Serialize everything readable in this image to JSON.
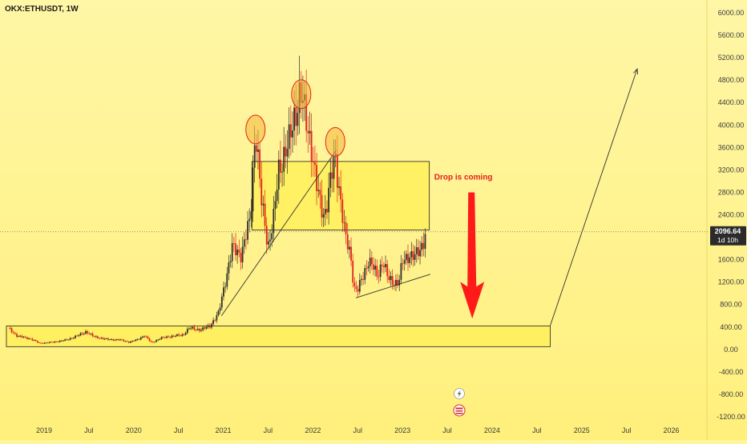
{
  "symbol_label": "OKX:ETHUSDT, 1W",
  "price_badge": {
    "price": "2096.64",
    "countdown": "1d 10h"
  },
  "annotation": "Drop is coming",
  "bottom_icons": [
    "lightning-icon",
    "replay-icon"
  ],
  "colors": {
    "up": "#2e2e2e",
    "down": "#e5201b",
    "zone_fill": "#fff05a",
    "arrow_red": "#ff1a1a",
    "background": "#fff28a"
  },
  "chart_data": {
    "type": "candlestick",
    "symbol": "OKX:ETHUSDT",
    "interval": "1W",
    "current_price": 2096.64,
    "ylim": [
      -1200,
      6000
    ],
    "y_ticks": [
      "6000.00",
      "5600.00",
      "5200.00",
      "4800.00",
      "4400.00",
      "4000.00",
      "3600.00",
      "3200.00",
      "2800.00",
      "2400.00",
      "2000.00",
      "1600.00",
      "1200.00",
      "800.00",
      "400.00",
      "0.00",
      "-400.00",
      "-800.00",
      "-1200.00"
    ],
    "x_ticks": [
      "2019",
      "Jul",
      "2020",
      "Jul",
      "2021",
      "Jul",
      "2022",
      "Jul",
      "2023",
      "Jul",
      "2024",
      "Jul",
      "2025",
      "Jul",
      "2026"
    ],
    "x_tick_values": [
      2019.0,
      2019.5,
      2020.0,
      2020.5,
      2021.0,
      2021.5,
      2022.0,
      2022.5,
      2023.0,
      2023.5,
      2024.0,
      2024.5,
      2025.0,
      2025.5,
      2026.0
    ],
    "xlim": [
      2018.58,
      2026.38
    ],
    "price_path": [
      [
        2018.6,
        380
      ],
      [
        2018.7,
        240
      ],
      [
        2018.85,
        190
      ],
      [
        2018.95,
        110
      ],
      [
        2019.1,
        130
      ],
      [
        2019.25,
        170
      ],
      [
        2019.4,
        260
      ],
      [
        2019.47,
        320
      ],
      [
        2019.55,
        230
      ],
      [
        2019.7,
        180
      ],
      [
        2019.85,
        170
      ],
      [
        2019.95,
        130
      ],
      [
        2020.05,
        180
      ],
      [
        2020.12,
        250
      ],
      [
        2020.2,
        120
      ],
      [
        2020.3,
        200
      ],
      [
        2020.4,
        230
      ],
      [
        2020.55,
        260
      ],
      [
        2020.62,
        380
      ],
      [
        2020.75,
        350
      ],
      [
        2020.85,
        420
      ],
      [
        2020.95,
        650
      ],
      [
        2021.02,
        1200
      ],
      [
        2021.1,
        1800
      ],
      [
        2021.2,
        1700
      ],
      [
        2021.3,
        2300
      ],
      [
        2021.36,
        4000
      ],
      [
        2021.42,
        2700
      ],
      [
        2021.5,
        1850
      ],
      [
        2021.56,
        2300
      ],
      [
        2021.62,
        3200
      ],
      [
        2021.68,
        3500
      ],
      [
        2021.74,
        3700
      ],
      [
        2021.8,
        4200
      ],
      [
        2021.86,
        4600
      ],
      [
        2021.92,
        4100
      ],
      [
        2021.98,
        3700
      ],
      [
        2022.03,
        3000
      ],
      [
        2022.08,
        2600
      ],
      [
        2022.13,
        2400
      ],
      [
        2022.2,
        3000
      ],
      [
        2022.25,
        3450
      ],
      [
        2022.3,
        2800
      ],
      [
        2022.36,
        2000
      ],
      [
        2022.42,
        1700
      ],
      [
        2022.46,
        1100
      ],
      [
        2022.5,
        1050
      ],
      [
        2022.56,
        1300
      ],
      [
        2022.62,
        1600
      ],
      [
        2022.66,
        1500
      ],
      [
        2022.72,
        1300
      ],
      [
        2022.78,
        1600
      ],
      [
        2022.84,
        1250
      ],
      [
        2022.9,
        1200
      ],
      [
        2022.96,
        1200
      ],
      [
        2023.0,
        1550
      ],
      [
        2023.08,
        1700
      ],
      [
        2023.14,
        1650
      ],
      [
        2023.2,
        1780
      ],
      [
        2023.26,
        2096
      ]
    ],
    "zones": [
      {
        "x": [
          2021.32,
          2023.3
        ],
        "y": [
          2130,
          3350
        ]
      },
      {
        "x": [
          2018.58,
          2024.65
        ],
        "y": [
          50,
          420
        ]
      }
    ],
    "circles": [
      {
        "x": 2021.36,
        "y": 3920
      },
      {
        "x": 2021.87,
        "y": 4550
      },
      {
        "x": 2022.25,
        "y": 3700
      }
    ],
    "trendlines": [
      {
        "from": [
          2020.98,
          600
        ],
        "to": [
          2022.26,
          3550
        ]
      },
      {
        "from": [
          2022.48,
          920
        ],
        "to": [
          2023.31,
          1340
        ]
      },
      {
        "from": [
          2024.65,
          430
        ],
        "to": [
          2025.62,
          5000
        ]
      }
    ],
    "drop_arrow": {
      "from": [
        2023.77,
        2800
      ],
      "to": [
        2023.77,
        550
      ]
    }
  }
}
